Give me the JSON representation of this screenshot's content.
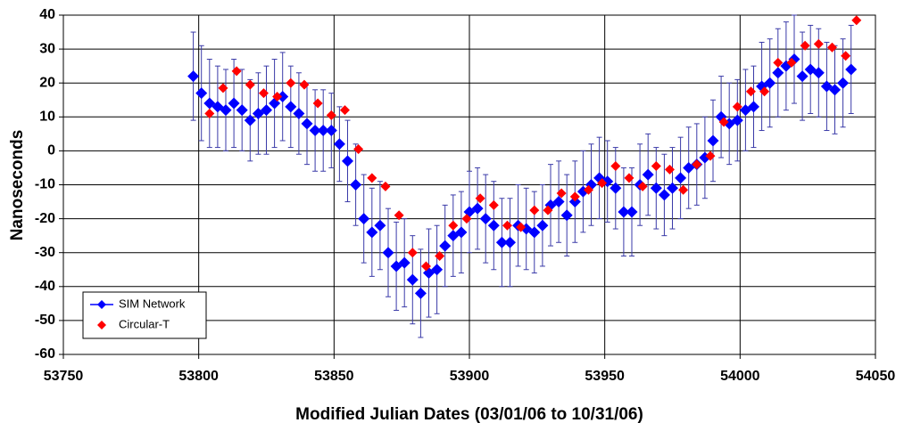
{
  "chart_data": {
    "type": "scatter",
    "xlabel": "Modified Julian Dates (03/01/06 to 10/31/06)",
    "ylabel": "Nanoseconds",
    "xlim": [
      53750,
      54050
    ],
    "xticks": [
      53750,
      53800,
      53850,
      53900,
      53950,
      54000,
      54050
    ],
    "ylim": [
      -60,
      40
    ],
    "yticks": [
      -60,
      -50,
      -40,
      -30,
      -20,
      -10,
      0,
      10,
      20,
      30,
      40
    ],
    "grid": true,
    "legend": "lower left",
    "series": [
      {
        "name": "SIM Network",
        "color": "#0000ff",
        "error_color": "#3a3aa8",
        "x": [
          53798,
          53801,
          53804,
          53807,
          53810,
          53813,
          53816,
          53819,
          53822,
          53825,
          53828,
          53831,
          53834,
          53837,
          53840,
          53843,
          53846,
          53849,
          53852,
          53855,
          53858,
          53861,
          53864,
          53867,
          53870,
          53873,
          53876,
          53879,
          53882,
          53885,
          53888,
          53891,
          53894,
          53897,
          53900,
          53903,
          53906,
          53909,
          53912,
          53915,
          53918,
          53921,
          53924,
          53927,
          53930,
          53933,
          53936,
          53939,
          53942,
          53945,
          53948,
          53951,
          53954,
          53957,
          53960,
          53963,
          53966,
          53969,
          53972,
          53975,
          53978,
          53981,
          53984,
          53987,
          53990,
          53993,
          53996,
          53999,
          54002,
          54005,
          54008,
          54011,
          54014,
          54017,
          54020,
          54023,
          54026,
          54029,
          54032,
          54035,
          54038,
          54041
        ],
        "values": [
          22,
          17,
          14,
          13,
          12,
          14,
          12,
          9,
          11,
          12,
          14,
          16,
          13,
          11,
          8,
          6,
          6,
          6,
          2,
          -3,
          -10,
          -20,
          -24,
          -22,
          -30,
          -34,
          -33,
          -38,
          -42,
          -36,
          -35,
          -28,
          -25,
          -24,
          -18,
          -17,
          -20,
          -22,
          -27,
          -27,
          -22,
          -23,
          -24,
          -22,
          -16,
          -15,
          -19,
          -15,
          -12,
          -10,
          -8,
          -9,
          -11,
          -18,
          -18,
          -10,
          -7,
          -11,
          -13,
          -11,
          -8,
          -5,
          -4,
          -2,
          3,
          10,
          8,
          9,
          12,
          13,
          19,
          20,
          23,
          25,
          27,
          22,
          24,
          23,
          19,
          18,
          20,
          24
        ],
        "errors": [
          13,
          14,
          13,
          12,
          12,
          13,
          12,
          12,
          12,
          13,
          13,
          13,
          12,
          12,
          12,
          12,
          12,
          11,
          11,
          12,
          12,
          13,
          13,
          13,
          13,
          13,
          13,
          13,
          13,
          13,
          13,
          12,
          12,
          12,
          12,
          12,
          13,
          13,
          13,
          13,
          12,
          12,
          12,
          12,
          12,
          12,
          12,
          12,
          12,
          12,
          12,
          12,
          12,
          13,
          13,
          12,
          12,
          12,
          12,
          12,
          12,
          12,
          12,
          12,
          12,
          12,
          12,
          12,
          12,
          12,
          13,
          13,
          13,
          13,
          13,
          13,
          13,
          13,
          13,
          13,
          13,
          13
        ]
      },
      {
        "name": "Circular-T",
        "color": "#ff0000",
        "x": [
          53804,
          53809,
          53814,
          53819,
          53824,
          53829,
          53834,
          53839,
          53844,
          53849,
          53854,
          53859,
          53864,
          53869,
          53874,
          53879,
          53884,
          53889,
          53894,
          53899,
          53904,
          53909,
          53914,
          53919,
          53924,
          53929,
          53934,
          53939,
          53944,
          53949,
          53954,
          53959,
          53964,
          53969,
          53974,
          53979,
          53984,
          53989,
          53994,
          53999,
          54004,
          54009,
          54014,
          54019,
          54024,
          54029,
          54034,
          54039,
          54043
        ],
        "values": [
          11,
          18.5,
          23.5,
          19.5,
          17,
          16,
          20,
          19.5,
          14,
          10.5,
          12,
          0.5,
          -8,
          -10.5,
          -19,
          -30,
          -34,
          -31,
          -22,
          -20,
          -14,
          -16,
          -22,
          -22.5,
          -17.5,
          -17.5,
          -12.5,
          -13.5,
          -11.5,
          -9.5,
          -4.5,
          -8,
          -10.5,
          -4.5,
          -5.5,
          -11.5,
          -4,
          -1.5,
          8.5,
          13,
          17.5,
          17.5,
          26,
          26,
          31,
          31.5,
          30.5,
          28,
          38.5
        ]
      }
    ]
  }
}
